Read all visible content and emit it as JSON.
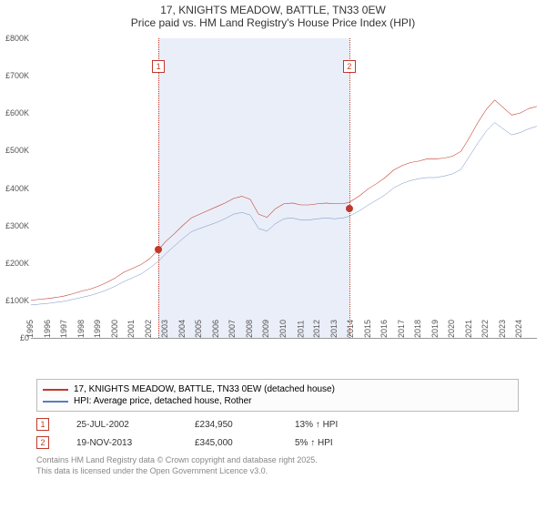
{
  "title": {
    "line1": "17, KNIGHTS MEADOW, BATTLE, TN33 0EW",
    "line2": "Price paid vs. HM Land Registry's House Price Index (HPI)"
  },
  "chart": {
    "type": "line",
    "background_color": "#ffffff",
    "band_color": "#eaeef8",
    "grid_color": "#e6e6e6",
    "year_min": 1995,
    "year_max": 2025,
    "x_years": [
      1995,
      1996,
      1997,
      1998,
      1999,
      2000,
      2001,
      2002,
      2003,
      2004,
      2005,
      2006,
      2007,
      2008,
      2009,
      2010,
      2011,
      2012,
      2013,
      2014,
      2015,
      2016,
      2017,
      2018,
      2019,
      2020,
      2021,
      2022,
      2023,
      2024
    ],
    "y_min": 0,
    "y_max": 800,
    "y_ticks": [
      0,
      100,
      200,
      300,
      400,
      500,
      600,
      700,
      800
    ],
    "y_tick_labels": [
      "£0",
      "£100K",
      "£200K",
      "£300K",
      "£400K",
      "£500K",
      "£600K",
      "£700K",
      "£800K"
    ],
    "band": {
      "start_year": 2002.56,
      "end_year": 2013.88
    },
    "series_red": {
      "label": "17, KNIGHTS MEADOW, BATTLE, TN33 0EW (detached house)",
      "color": "#c0392b",
      "width": 2.5,
      "points": [
        [
          1995.0,
          100
        ],
        [
          1995.5,
          103
        ],
        [
          1996.0,
          105
        ],
        [
          1996.5,
          108
        ],
        [
          1997.0,
          112
        ],
        [
          1997.5,
          118
        ],
        [
          1998.0,
          125
        ],
        [
          1998.5,
          130
        ],
        [
          1999.0,
          138
        ],
        [
          1999.5,
          148
        ],
        [
          2000.0,
          160
        ],
        [
          2000.5,
          175
        ],
        [
          2001.0,
          185
        ],
        [
          2001.5,
          195
        ],
        [
          2002.0,
          210
        ],
        [
          2002.56,
          235
        ],
        [
          2003.0,
          258
        ],
        [
          2003.5,
          278
        ],
        [
          2004.0,
          300
        ],
        [
          2004.5,
          320
        ],
        [
          2005.0,
          330
        ],
        [
          2005.5,
          340
        ],
        [
          2006.0,
          350
        ],
        [
          2006.5,
          360
        ],
        [
          2007.0,
          372
        ],
        [
          2007.5,
          378
        ],
        [
          2008.0,
          370
        ],
        [
          2008.5,
          330
        ],
        [
          2009.0,
          322
        ],
        [
          2009.5,
          345
        ],
        [
          2010.0,
          358
        ],
        [
          2010.5,
          360
        ],
        [
          2011.0,
          355
        ],
        [
          2011.5,
          355
        ],
        [
          2012.0,
          358
        ],
        [
          2012.5,
          360
        ],
        [
          2013.0,
          358
        ],
        [
          2013.5,
          358
        ],
        [
          2013.88,
          362
        ],
        [
          2014.5,
          380
        ],
        [
          2015.0,
          398
        ],
        [
          2015.5,
          412
        ],
        [
          2016.0,
          428
        ],
        [
          2016.5,
          448
        ],
        [
          2017.0,
          460
        ],
        [
          2017.5,
          468
        ],
        [
          2018.0,
          472
        ],
        [
          2018.5,
          478
        ],
        [
          2019.0,
          478
        ],
        [
          2019.5,
          480
        ],
        [
          2020.0,
          485
        ],
        [
          2020.5,
          498
        ],
        [
          2021.0,
          535
        ],
        [
          2021.5,
          575
        ],
        [
          2022.0,
          610
        ],
        [
          2022.5,
          635
        ],
        [
          2023.0,
          615
        ],
        [
          2023.5,
          595
        ],
        [
          2024.0,
          600
        ],
        [
          2024.5,
          612
        ],
        [
          2025.0,
          618
        ]
      ]
    },
    "series_blue": {
      "label": "HPI: Average price, detached house, Rother",
      "color": "#5b7fb8",
      "width": 2,
      "points": [
        [
          1995.0,
          88
        ],
        [
          1995.5,
          90
        ],
        [
          1996.0,
          92
        ],
        [
          1996.5,
          95
        ],
        [
          1997.0,
          98
        ],
        [
          1997.5,
          103
        ],
        [
          1998.0,
          108
        ],
        [
          1998.5,
          113
        ],
        [
          1999.0,
          120
        ],
        [
          1999.5,
          128
        ],
        [
          2000.0,
          138
        ],
        [
          2000.5,
          150
        ],
        [
          2001.0,
          160
        ],
        [
          2001.5,
          170
        ],
        [
          2002.0,
          185
        ],
        [
          2002.56,
          205
        ],
        [
          2003.0,
          225
        ],
        [
          2003.5,
          245
        ],
        [
          2004.0,
          265
        ],
        [
          2004.5,
          283
        ],
        [
          2005.0,
          292
        ],
        [
          2005.5,
          300
        ],
        [
          2006.0,
          308
        ],
        [
          2006.5,
          318
        ],
        [
          2007.0,
          330
        ],
        [
          2007.5,
          335
        ],
        [
          2008.0,
          328
        ],
        [
          2008.5,
          292
        ],
        [
          2009.0,
          285
        ],
        [
          2009.5,
          305
        ],
        [
          2010.0,
          318
        ],
        [
          2010.5,
          320
        ],
        [
          2011.0,
          315
        ],
        [
          2011.5,
          315
        ],
        [
          2012.0,
          318
        ],
        [
          2012.5,
          320
        ],
        [
          2013.0,
          318
        ],
        [
          2013.5,
          320
        ],
        [
          2013.88,
          325
        ],
        [
          2014.5,
          340
        ],
        [
          2015.0,
          355
        ],
        [
          2015.5,
          368
        ],
        [
          2016.0,
          382
        ],
        [
          2016.5,
          400
        ],
        [
          2017.0,
          412
        ],
        [
          2017.5,
          420
        ],
        [
          2018.0,
          425
        ],
        [
          2018.5,
          428
        ],
        [
          2019.0,
          428
        ],
        [
          2019.5,
          432
        ],
        [
          2020.0,
          438
        ],
        [
          2020.5,
          450
        ],
        [
          2021.0,
          485
        ],
        [
          2021.5,
          520
        ],
        [
          2022.0,
          552
        ],
        [
          2022.5,
          575
        ],
        [
          2023.0,
          558
        ],
        [
          2023.5,
          542
        ],
        [
          2024.0,
          548
        ],
        [
          2024.5,
          558
        ],
        [
          2025.0,
          565
        ]
      ]
    },
    "transaction_markers": [
      {
        "n": "1",
        "year": 2002.56,
        "value": 235
      },
      {
        "n": "2",
        "year": 2013.88,
        "value": 345
      }
    ]
  },
  "transactions": [
    {
      "n": "1",
      "date": "25-JUL-2002",
      "price": "£234,950",
      "delta": "13% ↑ HPI"
    },
    {
      "n": "2",
      "date": "19-NOV-2013",
      "price": "£345,000",
      "delta": "5% ↑ HPI"
    }
  ],
  "footer": {
    "line1": "Contains HM Land Registry data © Crown copyright and database right 2025.",
    "line2": "This data is licensed under the Open Government Licence v3.0."
  }
}
